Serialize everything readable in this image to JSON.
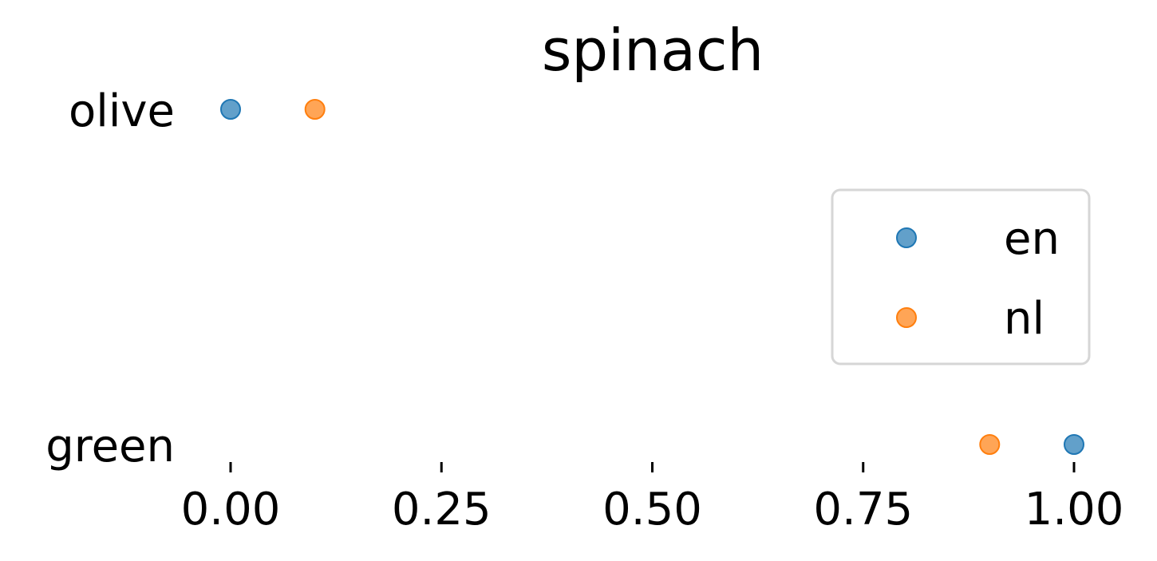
{
  "chart_data": {
    "type": "scatter",
    "title": "spinach",
    "xlabel": "",
    "ylabel": "",
    "xlim": [
      0.0,
      1.0
    ],
    "x_ticks": [
      "0.00",
      "0.25",
      "0.50",
      "0.75",
      "1.00"
    ],
    "categories": [
      "green",
      "olive"
    ],
    "series": [
      {
        "name": "en",
        "color": "#1f77b4",
        "points": [
          {
            "category": "olive",
            "x": 0.0
          },
          {
            "category": "green",
            "x": 1.0
          }
        ]
      },
      {
        "name": "nl",
        "color": "#ff7f0e",
        "points": [
          {
            "category": "olive",
            "x": 0.1
          },
          {
            "category": "green",
            "x": 0.9
          }
        ]
      }
    ],
    "legend": {
      "placement": "center-right",
      "entries": [
        "en",
        "nl"
      ]
    },
    "grid": false,
    "spines": false
  }
}
